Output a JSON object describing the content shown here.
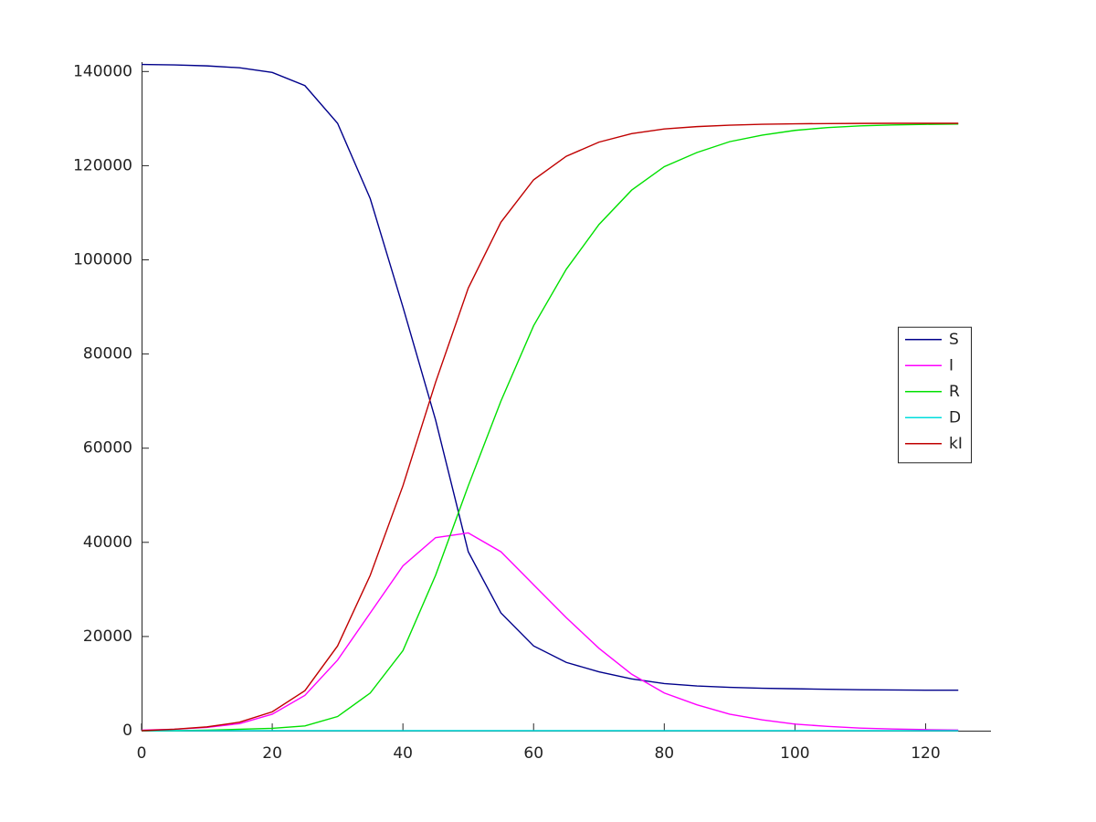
{
  "chart_data": {
    "type": "line",
    "x": [
      0,
      5,
      10,
      15,
      20,
      25,
      30,
      35,
      40,
      45,
      50,
      55,
      60,
      65,
      70,
      75,
      80,
      85,
      90,
      95,
      100,
      105,
      110,
      115,
      120,
      125
    ],
    "series": [
      {
        "name": "S",
        "color": "#00008b",
        "values": [
          141500,
          141400,
          141200,
          140800,
          139800,
          137000,
          129000,
          113000,
          90000,
          66000,
          38000,
          25000,
          18000,
          14500,
          12500,
          11000,
          10000,
          9500,
          9200,
          9000,
          8900,
          8800,
          8700,
          8650,
          8600,
          8600
        ]
      },
      {
        "name": "I",
        "color": "#ff00ff",
        "values": [
          100,
          300,
          700,
          1500,
          3500,
          7500,
          15000,
          25000,
          35000,
          41000,
          42000,
          38000,
          31000,
          24000,
          17500,
          12000,
          8000,
          5500,
          3500,
          2300,
          1400,
          900,
          550,
          350,
          220,
          140
        ]
      },
      {
        "name": "R",
        "color": "#00e000",
        "values": [
          0,
          0,
          100,
          300,
          500,
          1000,
          3000,
          8000,
          17000,
          33000,
          52000,
          70000,
          86000,
          98000,
          107500,
          114800,
          119800,
          122800,
          125100,
          126500,
          127500,
          128100,
          128450,
          128650,
          128780,
          128860
        ]
      },
      {
        "name": "D",
        "color": "#00dddd",
        "values": [
          0,
          0,
          0,
          0,
          0,
          0,
          0,
          0,
          0,
          0,
          0,
          0,
          0,
          0,
          0,
          0,
          0,
          0,
          0,
          0,
          0,
          0,
          0,
          0,
          0,
          0
        ]
      },
      {
        "name": "kI",
        "color": "#c00000",
        "values": [
          0,
          300,
          800,
          1800,
          4000,
          8500,
          18000,
          33000,
          52000,
          74000,
          94000,
          108000,
          117000,
          122000,
          125000,
          126800,
          127800,
          128300,
          128600,
          128800,
          128900,
          128950,
          128980,
          129000,
          129000,
          129000
        ]
      }
    ],
    "xlim": [
      0,
      130
    ],
    "xticks": [
      0,
      20,
      40,
      60,
      80,
      100,
      120
    ],
    "ylim": [
      0,
      142000
    ],
    "yticks": [
      0,
      20000,
      40000,
      60000,
      80000,
      100000,
      120000,
      140000
    ],
    "legend": "east"
  }
}
